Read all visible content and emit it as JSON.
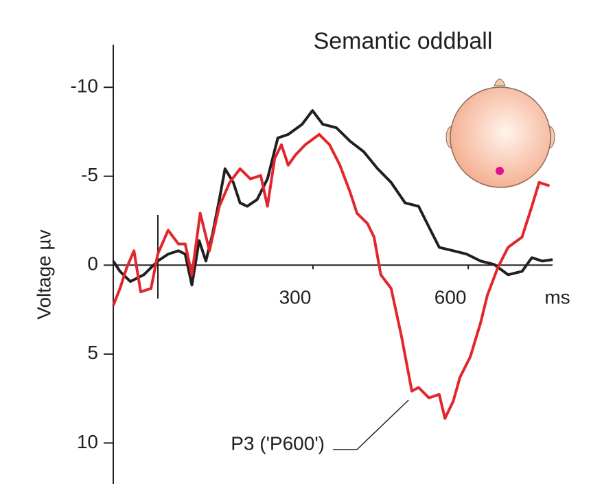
{
  "chart_data": {
    "type": "line",
    "title": "Semantic oddball",
    "y_label": "Voltage µv",
    "x_unit": "ms",
    "annotation": "P3 ('P600')",
    "xlim": [
      -86,
      763
    ],
    "xticks": [
      300,
      600
    ],
    "ylim": [
      -12.4,
      12.3
    ],
    "y_inverted": true,
    "yticks": [
      -10,
      -5,
      0,
      5,
      10
    ],
    "series": [
      {
        "color": "#231f20",
        "x": [
          -86,
          -73,
          -53,
          -27,
          0,
          20,
          40,
          53,
          66,
          80,
          93,
          106,
          119,
          130,
          146,
          159,
          173,
          192,
          212,
          232,
          252,
          279,
          299,
          319,
          345,
          372,
          398,
          425,
          451,
          478,
          504,
          524,
          544,
          571,
          597,
          624,
          650,
          677,
          704,
          723,
          743,
          763
        ],
        "values": [
          -0.23,
          0.35,
          0.92,
          0.54,
          -0.23,
          -0.62,
          -0.81,
          -0.62,
          1.12,
          -1.38,
          -0.23,
          -1.77,
          -3.69,
          -5.42,
          -4.65,
          -3.5,
          -3.31,
          -3.69,
          -4.85,
          -7.15,
          -7.35,
          -7.92,
          -8.69,
          -7.92,
          -7.73,
          -6.96,
          -6.38,
          -5.42,
          -4.65,
          -3.5,
          -3.31,
          -2.15,
          -1.0,
          -0.81,
          -0.62,
          -0.23,
          -0.04,
          0.54,
          0.35,
          -0.42,
          -0.23,
          -0.31
        ]
      },
      {
        "color": "#e3262b",
        "x": [
          -86,
          -73,
          -60,
          -46,
          -33,
          -13,
          0,
          20,
          40,
          53,
          66,
          82,
          100,
          119,
          139,
          159,
          179,
          199,
          212,
          226,
          239,
          252,
          266,
          285,
          312,
          332,
          352,
          372,
          385,
          405,
          418,
          431,
          451,
          471,
          491,
          504,
          524,
          544,
          555,
          571,
          584,
          604,
          624,
          637,
          657,
          677,
          704,
          723,
          737,
          757
        ],
        "values": [
          2.27,
          1.31,
          0.15,
          -0.81,
          1.5,
          1.31,
          -0.62,
          -1.96,
          -1.19,
          -1.19,
          0.54,
          -2.92,
          -0.81,
          -3.31,
          -4.65,
          -5.42,
          -4.85,
          -5.04,
          -3.31,
          -6.0,
          -6.77,
          -5.62,
          -6.19,
          -6.77,
          -7.35,
          -6.77,
          -5.62,
          -4.08,
          -2.92,
          -2.35,
          -1.58,
          0.54,
          1.31,
          4.0,
          7.08,
          6.88,
          7.46,
          7.27,
          8.62,
          7.65,
          6.31,
          5.15,
          3.23,
          1.69,
          0.15,
          -1.0,
          -1.58,
          -3.31,
          -4.65,
          -4.46
        ]
      }
    ]
  }
}
